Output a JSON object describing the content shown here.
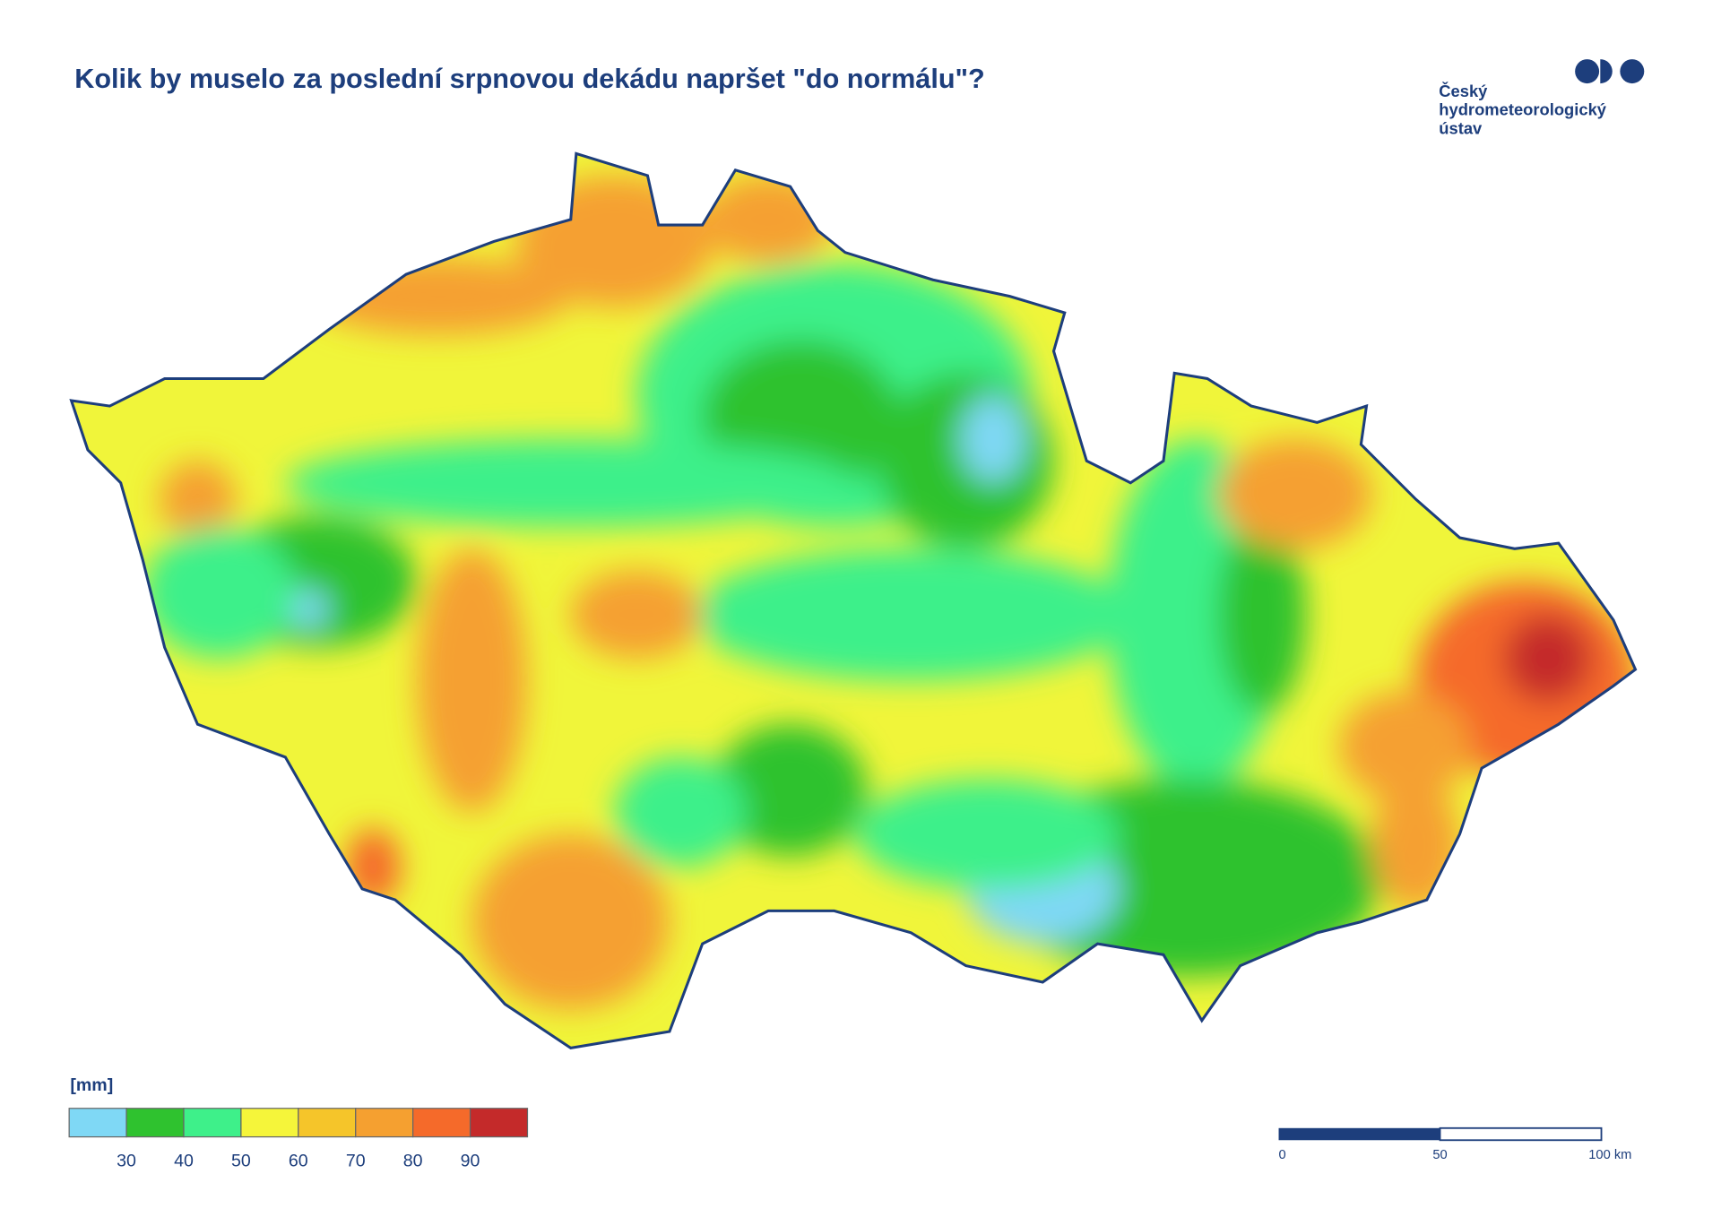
{
  "header": {
    "title": "Kolik by muselo za poslední srpnovou dekádu napršet \"do normálu\"?",
    "logo": [
      "Český",
      "hydrometeorologický",
      "ústav"
    ]
  },
  "legend": {
    "unit": "[mm]",
    "colors": [
      "#7fd8f5",
      "#2fc22f",
      "#3ef08a",
      "#f5f53a",
      "#f5c52a",
      "#f5a030",
      "#f56a2a",
      "#c42a2a"
    ],
    "ticks": [
      "30",
      "40",
      "50",
      "60",
      "70",
      "80",
      "90"
    ]
  },
  "scale_bar": {
    "labels": [
      "0",
      "50",
      "100 km"
    ]
  }
}
